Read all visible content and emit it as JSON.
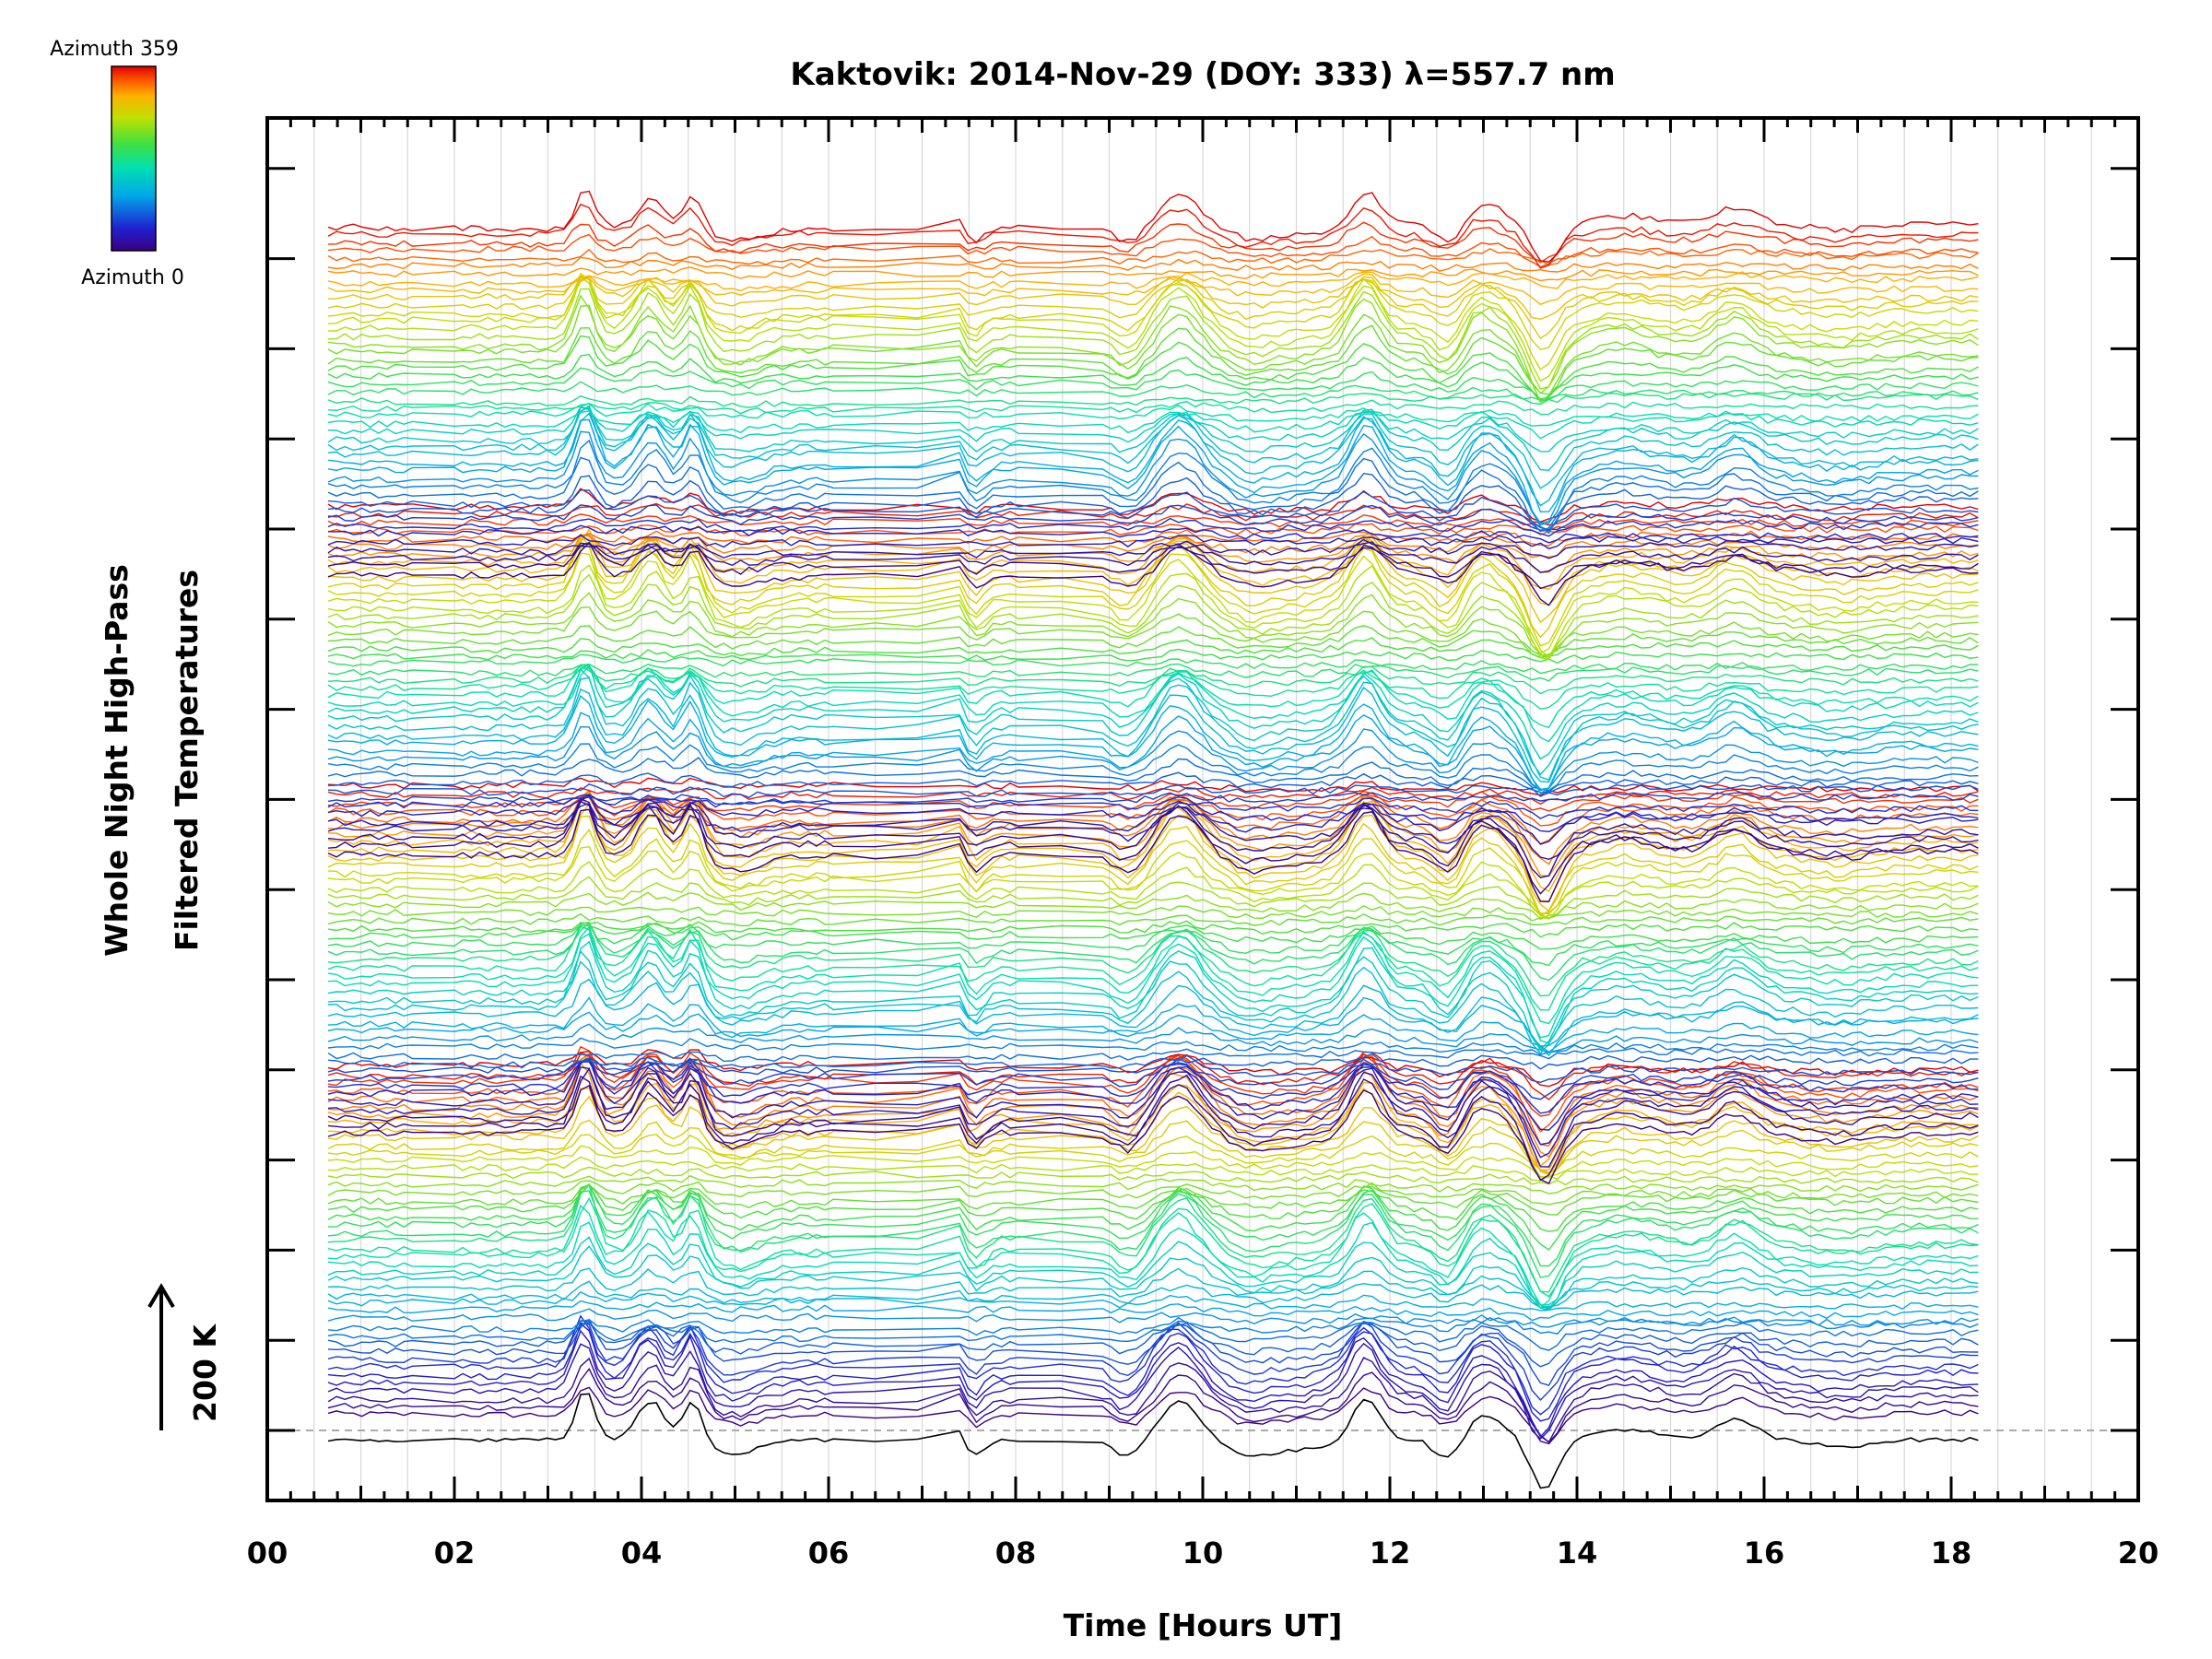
{
  "chart_data": {
    "type": "line",
    "title": "Kaktovik: 2014-Nov-29 (DOY: 333) λ=557.7 nm",
    "xlabel": "Time [Hours UT]",
    "ylabel_line1": "Whole Night High-Pass",
    "ylabel_line2": "Filtered Temperatures",
    "scale_bar_label": "200 K",
    "xlim": [
      0,
      20
    ],
    "x_tick_labels": [
      "00",
      "02",
      "04",
      "06",
      "08",
      "10",
      "12",
      "14",
      "16",
      "18",
      "20"
    ],
    "x_tick_values": [
      0,
      2,
      4,
      6,
      8,
      10,
      12,
      14,
      16,
      18,
      20
    ],
    "data_time_range": [
      0.65,
      18.3
    ],
    "grid": true,
    "colorbar": {
      "top_label": "Azimuth 359",
      "bottom_label": "Azimuth 0",
      "colormap": "rainbow",
      "stops": [
        "#3a0080",
        "#2020d0",
        "#00a8e8",
        "#00e0b0",
        "#40e040",
        "#c0e000",
        "#ffb000",
        "#ff5000",
        "#e00000"
      ]
    },
    "series_count": 180,
    "stack_groups": 4,
    "series_per_group": 45,
    "group_baseline_offset_K": 800,
    "series_spacing_K": 12.5,
    "feature_times_h": [
      3.4,
      4.1,
      4.55,
      7.3,
      7.55,
      9.2,
      9.75,
      10.5,
      11.75,
      12.65,
      13.65,
      15.7
    ]
  }
}
